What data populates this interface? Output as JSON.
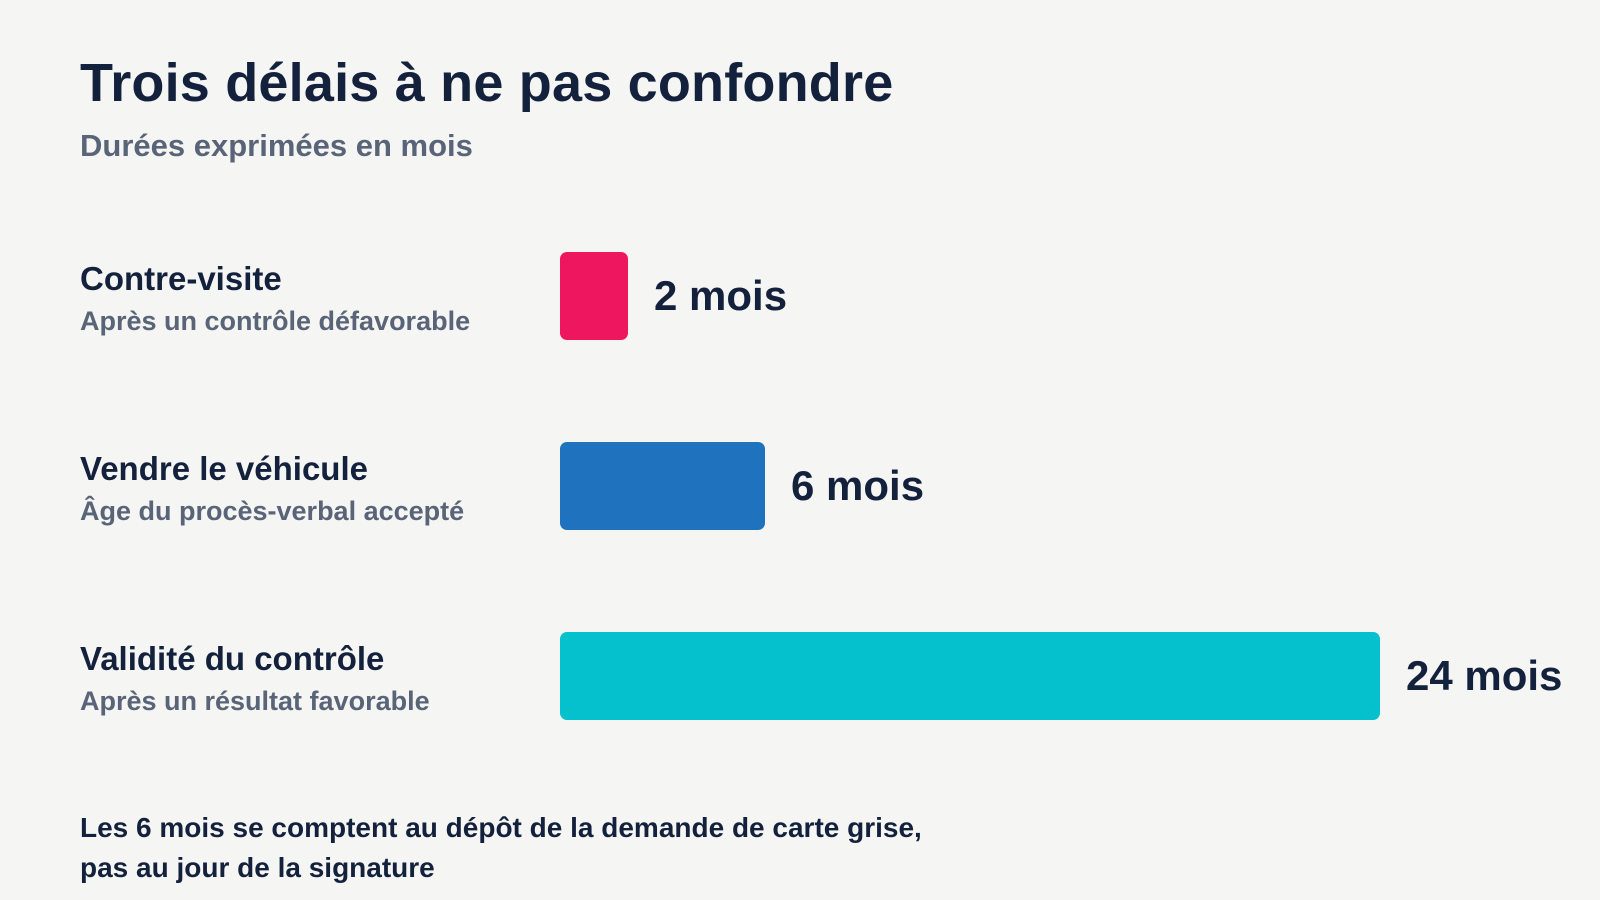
{
  "chart_data": {
    "type": "bar",
    "orientation": "horizontal",
    "title": "Trois délais à ne pas confondre",
    "subtitle": "Durées exprimées en mois",
    "unit": "mois",
    "xlim": [
      0,
      24
    ],
    "grid": false,
    "legend": "none",
    "categories": [
      "Contre-visite",
      "Vendre le véhicule",
      "Validité du contrôle"
    ],
    "notes": [
      "Après un contrôle défavorable",
      "Âge du procès-verbal accepté",
      "Après un résultat favorable"
    ],
    "values": [
      2,
      6,
      24
    ],
    "value_labels": [
      "2 mois",
      "6 mois",
      "24 mois"
    ],
    "colors": [
      "#ef1660",
      "#1f72bd",
      "#05c1ce"
    ]
  },
  "footnote": {
    "line1": "Les 6 mois se comptent au dépôt de la demande de carte grise,",
    "line2": "pas au jour de la signature"
  }
}
